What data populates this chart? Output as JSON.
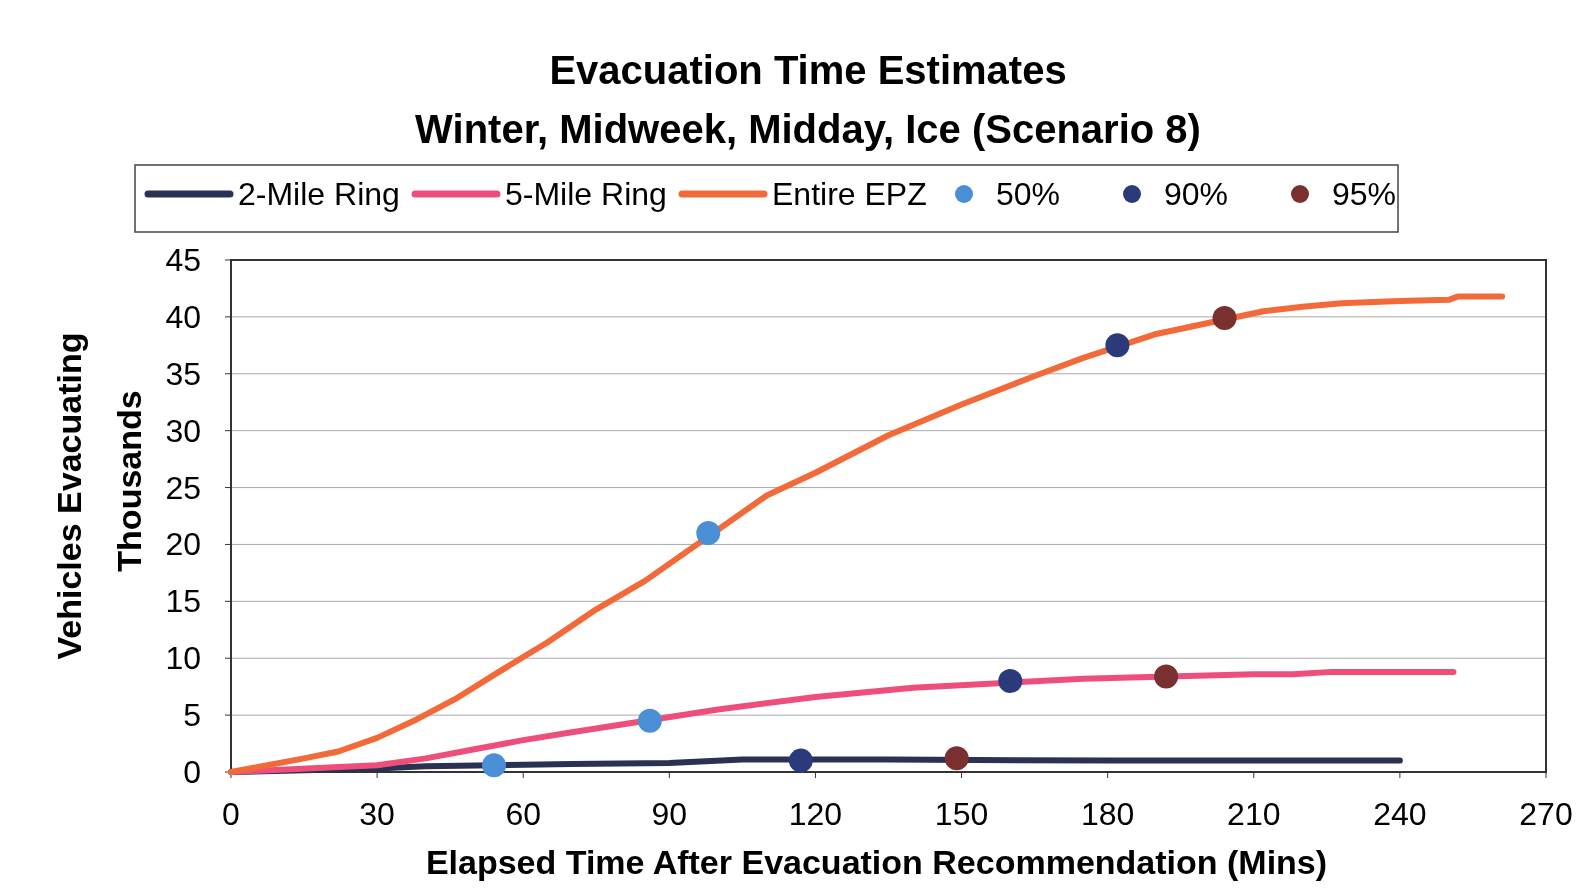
{
  "chart_data": {
    "type": "line",
    "title": "Evacuation Time Estimates",
    "subtitle": "Winter, Midweek, Midday, Ice (Scenario 8)",
    "xlabel": "Elapsed Time After Evacuation Recommendation (Mins)",
    "ylabel": "Vehicles Evacuating",
    "y2label": "Thousands",
    "xlim": [
      0,
      270
    ],
    "xticks": [
      0,
      30,
      60,
      90,
      120,
      150,
      180,
      210,
      240,
      270
    ],
    "ylim": [
      0,
      45
    ],
    "yticks": [
      0,
      5,
      10,
      15,
      20,
      25,
      30,
      35,
      40,
      45
    ],
    "grid": "y",
    "legend": "top",
    "marker": "none",
    "line_style": "solid",
    "series": [
      {
        "name": "2-Mile Ring",
        "color": "#2a3152",
        "x": [
          0,
          30,
          40,
          70,
          90,
          105,
          135,
          180,
          240
        ],
        "values": [
          0,
          0.3,
          0.5,
          0.7,
          0.8,
          1.1,
          1.1,
          1.0,
          1.0
        ]
      },
      {
        "name": "5-Mile Ring",
        "color": "#ee4f7a",
        "x": [
          0,
          20,
          30,
          40,
          50,
          60,
          70,
          100,
          120,
          140,
          175,
          210,
          218,
          226,
          240,
          251
        ],
        "values": [
          0,
          0.4,
          0.6,
          1.2,
          2.0,
          2.8,
          3.5,
          5.5,
          6.6,
          7.4,
          8.2,
          8.6,
          8.6,
          8.8,
          8.8,
          8.8
        ]
      },
      {
        "name": "Entire EPZ",
        "color": "#f26a3a",
        "x": [
          0,
          15,
          22,
          30,
          38,
          46,
          55,
          65,
          75,
          85,
          110,
          120,
          135,
          150,
          165,
          175,
          190,
          212,
          220,
          228,
          240,
          250,
          252,
          261
        ],
        "values": [
          0,
          1.2,
          1.8,
          3.0,
          4.6,
          6.4,
          8.8,
          11.4,
          14.3,
          16.8,
          24.3,
          26.3,
          29.6,
          32.3,
          34.8,
          36.4,
          38.5,
          40.5,
          40.9,
          41.2,
          41.4,
          41.5,
          41.8,
          41.8
        ]
      },
      {
        "name": "50%",
        "type": "scatter",
        "marker": "circle",
        "color": "#4a8fd6",
        "x": [
          54,
          86,
          98
        ],
        "values": [
          0.6,
          4.5,
          21
        ]
      },
      {
        "name": "90%",
        "type": "scatter",
        "marker": "circle",
        "color": "#2b3a7a",
        "x": [
          117,
          160,
          182
        ],
        "values": [
          1.0,
          8.0,
          37.5
        ]
      },
      {
        "name": "95%",
        "type": "scatter",
        "marker": "circle",
        "color": "#7b3030",
        "x": [
          149,
          192,
          204
        ],
        "values": [
          1.2,
          8.4,
          39.9
        ]
      }
    ]
  }
}
